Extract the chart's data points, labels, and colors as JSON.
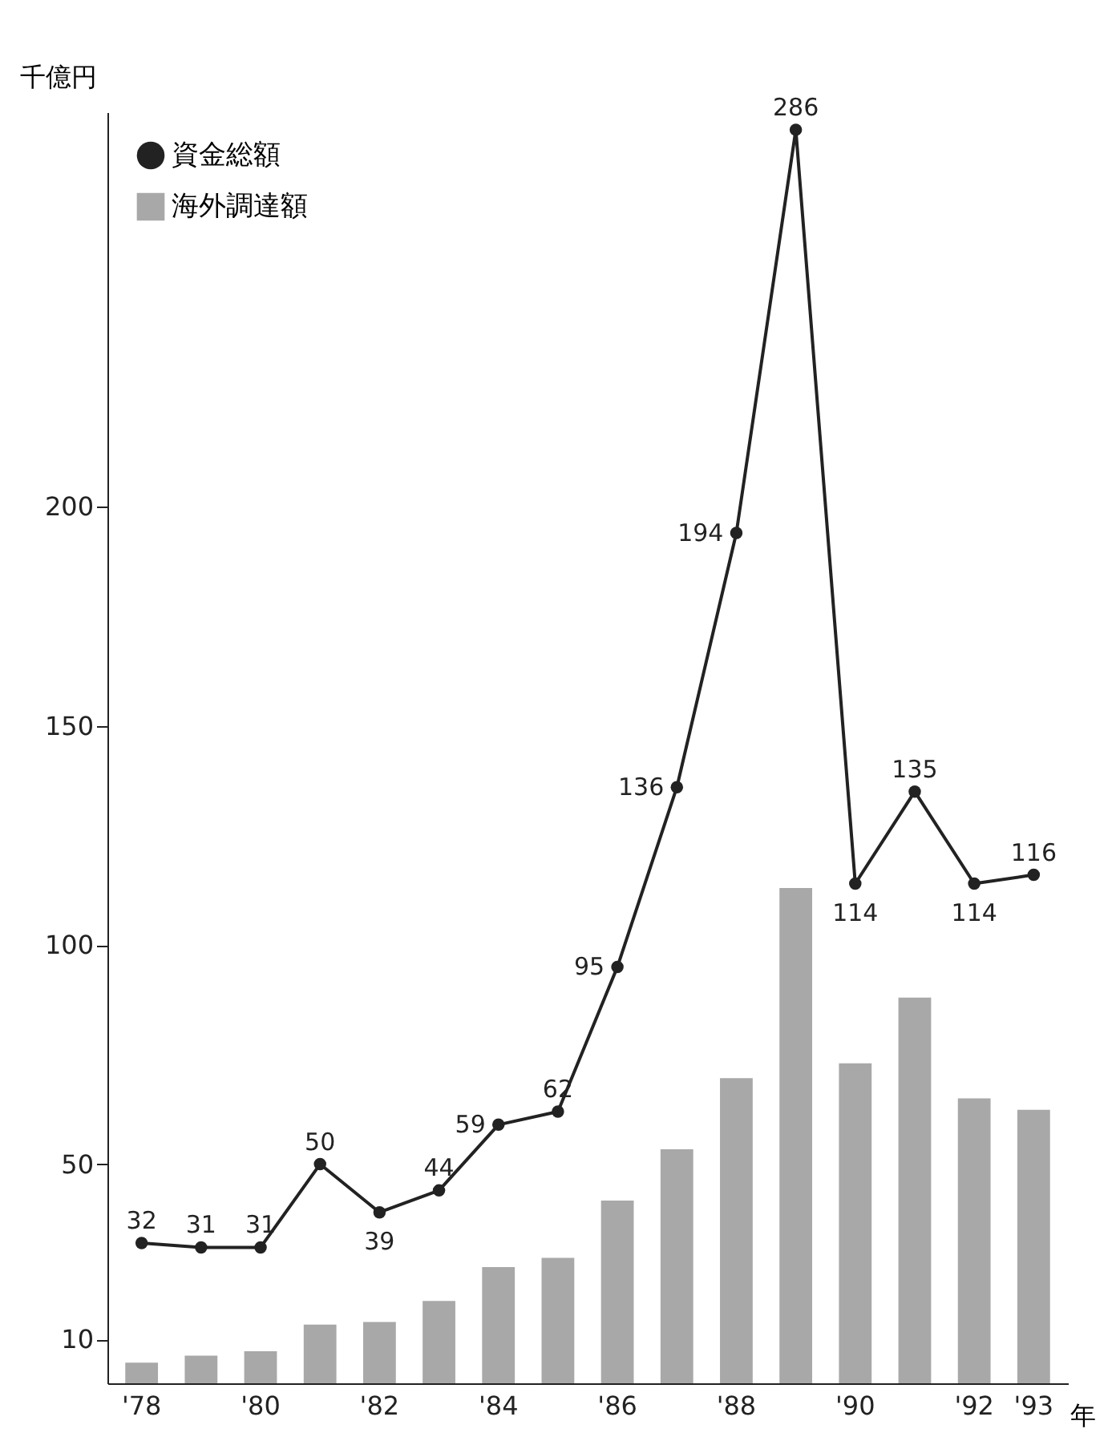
{
  "chart_data": {
    "type": "bar",
    "ylabel": "千億円",
    "xlabel": "年",
    "categories": [
      "'78",
      null,
      "'80",
      null,
      "'82",
      null,
      "'84",
      null,
      "'86",
      null,
      "'88",
      null,
      "'90",
      null,
      "'92",
      "'93"
    ],
    "series": [
      {
        "name": "資金総額",
        "type": "line",
        "color": "#222222",
        "marker": "circle",
        "values": [
          32,
          31,
          31,
          50,
          39,
          44,
          59,
          62,
          95,
          136,
          194,
          286,
          114,
          135,
          114,
          116
        ],
        "value_labels": [
          "32",
          "31",
          "31",
          "50",
          "39",
          "44",
          "59",
          "62",
          "95",
          "136",
          "194",
          "286",
          "114",
          "135",
          "114",
          "116"
        ]
      },
      {
        "name": "海外調達額",
        "color": "#a8a8a8",
        "values": [
          4.7,
          6.3,
          7.3,
          13.4,
          14,
          18.8,
          26.5,
          28.6,
          41.7,
          53.4,
          69.6,
          113,
          73,
          88,
          65,
          62.4
        ]
      }
    ],
    "ylim": [
      0,
      290
    ],
    "yticks": [
      10,
      50,
      100,
      150,
      200
    ],
    "grid": false,
    "legend": "top left"
  }
}
